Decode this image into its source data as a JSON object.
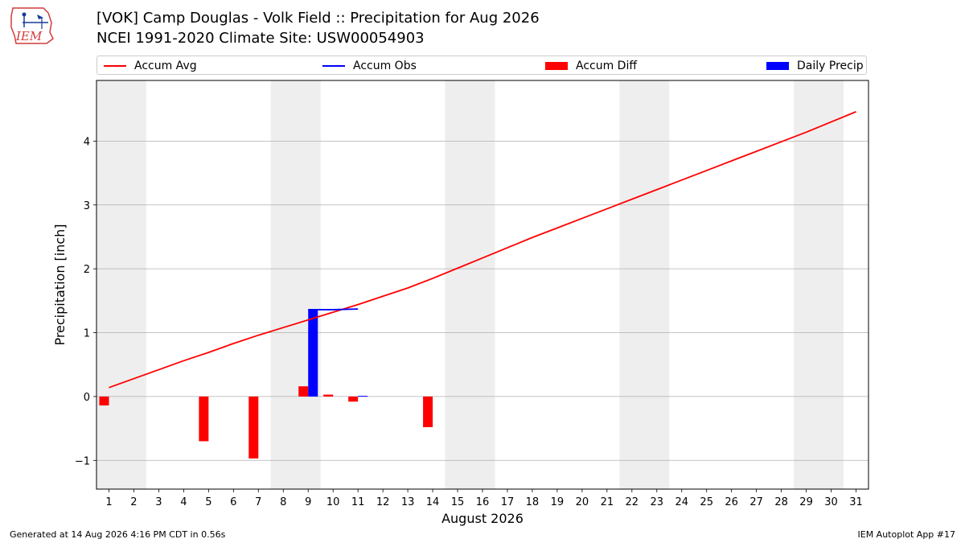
{
  "header": {
    "logo_text": "IEM",
    "title_line1": "[VOK] Camp Douglas - Volk Field :: Precipitation for Aug 2026",
    "title_line2": "NCEI 1991-2020 Climate Site: USW00054903"
  },
  "legend": {
    "items": [
      {
        "label": "Accum Avg",
        "kind": "line",
        "color": "#ff0000"
      },
      {
        "label": "Accum Obs",
        "kind": "line",
        "color": "#0000ff"
      },
      {
        "label": "Accum Diff",
        "kind": "box",
        "color": "#ff0000"
      },
      {
        "label": "Daily Precip",
        "kind": "box",
        "color": "#0000ff"
      }
    ]
  },
  "footer": {
    "left": "Generated at 14 Aug 2026 4:16 PM CDT in 0.56s",
    "right": "IEM Autoplot App #17"
  },
  "chart_data": {
    "type": "bar",
    "xlabel": "August 2026",
    "ylabel": "Precipitation [inch]",
    "xlim": [
      0.5,
      31.5
    ],
    "ylim": [
      -1.45,
      4.95
    ],
    "x_ticks": [
      1,
      2,
      3,
      4,
      5,
      6,
      7,
      8,
      9,
      10,
      11,
      12,
      13,
      14,
      15,
      16,
      17,
      18,
      19,
      20,
      21,
      22,
      23,
      24,
      25,
      26,
      27,
      28,
      29,
      30,
      31
    ],
    "y_ticks": [
      -1,
      0,
      1,
      2,
      3,
      4
    ],
    "y_tick_labels": [
      "−1",
      "0",
      "1",
      "2",
      "3",
      "4"
    ],
    "grid": "horizontal",
    "weekend_shading": [
      [
        0.5,
        2.5
      ],
      [
        7.5,
        9.5
      ],
      [
        14.5,
        16.5
      ],
      [
        21.5,
        23.5
      ],
      [
        28.5,
        30.5
      ]
    ],
    "shading_color": "#eeeeee",
    "series": [
      {
        "name": "Accum Avg",
        "type": "line",
        "color": "#ff0000",
        "x": [
          1,
          2,
          3,
          4,
          5,
          6,
          7,
          8,
          9,
          10,
          11,
          12,
          13,
          14,
          15,
          16,
          17,
          18,
          19,
          20,
          21,
          22,
          23,
          24,
          25,
          26,
          27,
          28,
          29,
          30,
          31
        ],
        "values": [
          0.14,
          0.28,
          0.42,
          0.56,
          0.69,
          0.83,
          0.96,
          1.08,
          1.2,
          1.32,
          1.44,
          1.57,
          1.7,
          1.85,
          2.01,
          2.17,
          2.33,
          2.49,
          2.64,
          2.79,
          2.94,
          3.09,
          3.24,
          3.39,
          3.54,
          3.69,
          3.84,
          3.99,
          4.14,
          4.3,
          4.46
        ]
      },
      {
        "name": "Accum Obs",
        "type": "line",
        "color": "#0000ff",
        "x": [
          9,
          10,
          11
        ],
        "values": [
          1.36,
          1.36,
          1.37
        ]
      },
      {
        "name": "Accum Diff",
        "type": "bar",
        "color": "#ff0000",
        "x": [
          1,
          5,
          7,
          9,
          10,
          11,
          14
        ],
        "values": [
          -0.14,
          -0.7,
          -0.97,
          0.16,
          0.03,
          -0.08,
          -0.48
        ]
      },
      {
        "name": "Daily Precip",
        "type": "bar",
        "color": "#0000ff",
        "x": [
          9,
          11
        ],
        "values": [
          1.36,
          0.01
        ]
      }
    ]
  }
}
